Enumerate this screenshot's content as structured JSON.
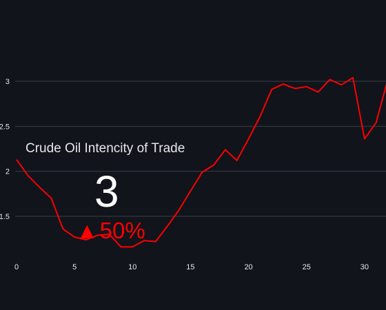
{
  "chart_data": {
    "type": "line",
    "title": "",
    "xlabel": "",
    "ylabel": "",
    "x": [
      0,
      1,
      2,
      3,
      4,
      5,
      6,
      7,
      8,
      9,
      10,
      11,
      12,
      13,
      14,
      15,
      16,
      17,
      18,
      19,
      20,
      21,
      22,
      23,
      24,
      25,
      26,
      27,
      28,
      29,
      30,
      31,
      32
    ],
    "series": [
      {
        "color": "#ff0000",
        "values": [
          2.13,
          1.95,
          1.82,
          1.7,
          1.36,
          1.27,
          1.24,
          1.29,
          1.3,
          1.16,
          1.16,
          1.23,
          1.22,
          1.39,
          1.57,
          1.78,
          1.99,
          2.07,
          2.24,
          2.12,
          2.36,
          2.61,
          2.91,
          2.97,
          2.92,
          2.94,
          2.88,
          3.02,
          2.96,
          3.04,
          2.36,
          2.54,
          3.02
        ]
      }
    ],
    "xlim": [
      0,
      32
    ],
    "ylim": [
      1.0,
      3.5
    ],
    "xticks": [
      "0",
      "5",
      "10",
      "15",
      "20",
      "25",
      "30"
    ],
    "xtick_values": [
      0,
      5,
      10,
      15,
      20,
      25,
      30
    ],
    "yticks": [
      "1.5",
      "2",
      "2.5",
      "3"
    ],
    "ytick_values": [
      1.5,
      2,
      2.5,
      3
    ],
    "grid": true,
    "colors": {
      "background": "#11141b",
      "grid": "#3a3e47",
      "tick_text": "#e8e8ea",
      "line": "#ff0000"
    }
  },
  "kpi": {
    "label": "Crude Oil Intencity of Trade",
    "value": "3",
    "delta_arrow": "▲",
    "delta_text": "50%",
    "delta_color": "#ff0000"
  }
}
